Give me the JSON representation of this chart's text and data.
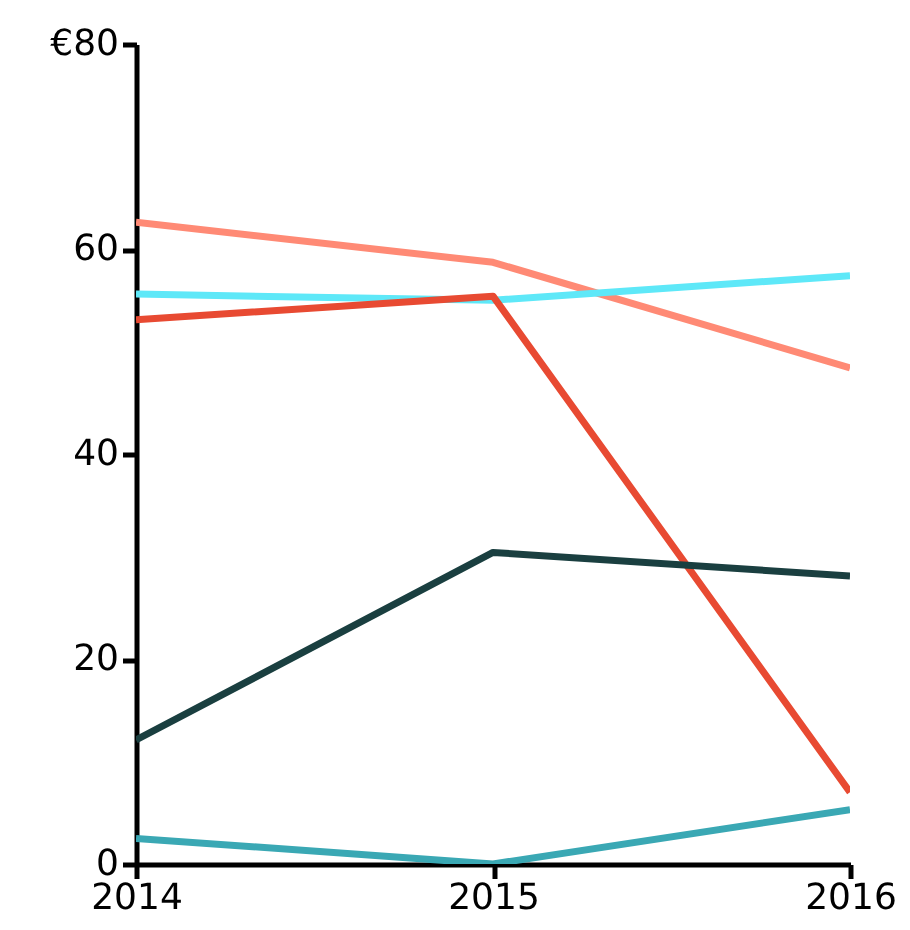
{
  "chart_data": {
    "type": "line",
    "x": [
      2014,
      2015,
      2016
    ],
    "xlim": [
      2014,
      2016
    ],
    "xticks": [
      2014,
      2015,
      2016
    ],
    "ylim": [
      0,
      80
    ],
    "yticks": [
      0,
      20,
      40,
      60,
      {
        "value": 80,
        "label": "€80"
      }
    ],
    "grid": false,
    "series": [
      {
        "color": "#ff8a75",
        "values": [
          62.6,
          58.7,
          48.4
        ]
      },
      {
        "color": "#5ee8f8",
        "values": [
          55.6,
          55.0,
          57.4
        ]
      },
      {
        "color": "#e84a32",
        "values": [
          53.1,
          55.4,
          7.0
        ]
      },
      {
        "color": "#1a3f40",
        "values": [
          12.1,
          30.4,
          28.1
        ]
      },
      {
        "color": "#3aa8b4",
        "values": [
          2.5,
          0,
          5.3
        ]
      }
    ]
  }
}
